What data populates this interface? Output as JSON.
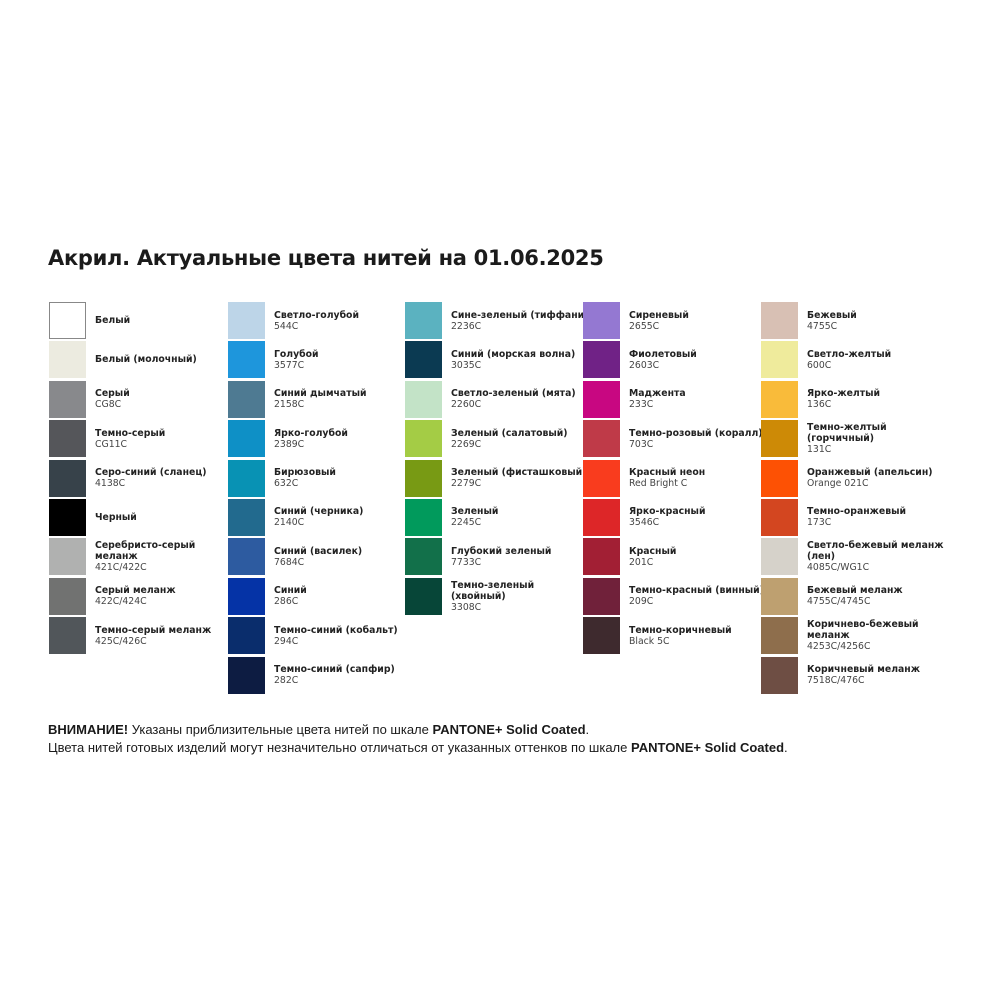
{
  "title": "Акрил. Актуальные цвета нитей на 01.06.2025",
  "columns": [
    [
      {
        "name": "Белый",
        "code": "",
        "color": "#ffffff"
      },
      {
        "name": "Белый (молочный)",
        "code": "",
        "color": "#ecebe0"
      },
      {
        "name": "Серый",
        "code": "CG8C",
        "color": "#88898c"
      },
      {
        "name": "Темно-серый",
        "code": "CG11C",
        "color": "#55565a"
      },
      {
        "name": "Серо-синий (сланец)",
        "code": "4138C",
        "color": "#37424a"
      },
      {
        "name": "Черный",
        "code": "",
        "color": "#000000"
      },
      {
        "name": "Серебристо-серый меланж",
        "code": "421C/422C",
        "color": "#b0b1b0"
      },
      {
        "name": "Серый меланж",
        "code": "422C/424C",
        "color": "#717271"
      },
      {
        "name": "Темно-серый меланж",
        "code": "425C/426C",
        "color": "#51565a"
      }
    ],
    [
      {
        "name": "Светло-голубой",
        "code": "544C",
        "color": "#bdd5e8"
      },
      {
        "name": "Голубой",
        "code": "3577C",
        "color": "#1e96dc"
      },
      {
        "name": "Синий дымчатый",
        "code": "2158C",
        "color": "#4e7a92"
      },
      {
        "name": "Ярко-голубой",
        "code": "2389C",
        "color": "#0e90c6"
      },
      {
        "name": "Бирюзовый",
        "code": "632C",
        "color": "#0892b4"
      },
      {
        "name": "Синий (черника)",
        "code": "2140C",
        "color": "#226a8e"
      },
      {
        "name": "Синий (василек)",
        "code": "7684C",
        "color": "#2d5ba0"
      },
      {
        "name": "Синий",
        "code": "286C",
        "color": "#0533a6"
      },
      {
        "name": "Темно-синий (кобальт)",
        "code": "294C",
        "color": "#0a2d6c"
      },
      {
        "name": "Темно-синий (сапфир)",
        "code": "282C",
        "color": "#0d1c42"
      }
    ],
    [
      {
        "name": "Сине-зеленый (тиффани)",
        "code": "2236C",
        "color": "#5bb2c0"
      },
      {
        "name": "Синий (морская волна)",
        "code": "3035C",
        "color": "#0b3a52"
      },
      {
        "name": "Светло-зеленый (мята)",
        "code": "2260C",
        "color": "#c3e3c7"
      },
      {
        "name": "Зеленый (салатовый)",
        "code": "2269C",
        "color": "#a4cc45"
      },
      {
        "name": "Зеленый (фисташковый)",
        "code": "2279C",
        "color": "#789a14"
      },
      {
        "name": "Зеленый",
        "code": "2245C",
        "color": "#019a5c"
      },
      {
        "name": "Глубокий зеленый",
        "code": "7733C",
        "color": "#12704a"
      },
      {
        "name": "Темно-зеленый (хвойный)",
        "code": "3308C",
        "color": "#074638"
      }
    ],
    [
      {
        "name": "Сиреневый",
        "code": "2655C",
        "color": "#9478d2"
      },
      {
        "name": "Фиолетовый",
        "code": "2603C",
        "color": "#702286"
      },
      {
        "name": "Маджента",
        "code": "233C",
        "color": "#c80781"
      },
      {
        "name": "Темно-розовый (коралл)",
        "code": "703C",
        "color": "#bf3a48"
      },
      {
        "name": "Красный неон",
        "code": "Red Bright C",
        "color": "#f93c1e"
      },
      {
        "name": "Ярко-красный",
        "code": "3546C",
        "color": "#dd2628"
      },
      {
        "name": "Красный",
        "code": "201C",
        "color": "#a21f34"
      },
      {
        "name": "Темно-красный (винный)",
        "code": "209C",
        "color": "#70213a"
      },
      {
        "name": "Темно-коричневый",
        "code": "Black 5C",
        "color": "#3e2a2e"
      }
    ],
    [
      {
        "name": "Бежевый",
        "code": "4755C",
        "color": "#d8c0b4"
      },
      {
        "name": "Светло-желтый",
        "code": "600C",
        "color": "#efeb9c"
      },
      {
        "name": "Ярко-желтый",
        "code": "136C",
        "color": "#f9bb3a"
      },
      {
        "name": "Темно-желтый (горчичный)",
        "code": "131C",
        "color": "#cd8a06"
      },
      {
        "name": "Оранжевый (апельсин)",
        "code": "Orange 021C",
        "color": "#fd5104"
      },
      {
        "name": "Темно-оранжевый",
        "code": "173C",
        "color": "#d34620"
      },
      {
        "name": "Светло-бежевый меланж (лен)",
        "code": "4085C/WG1C",
        "color": "#d6d2ca"
      },
      {
        "name": "Бежевый меланж",
        "code": "4755C/4745C",
        "color": "#bea070"
      },
      {
        "name": "Коричнево-бежевый меланж",
        "code": "4253C/4256C",
        "color": "#8e6e4c"
      },
      {
        "name": "Коричневый меланж",
        "code": "7518C/476C",
        "color": "#6e4e44"
      }
    ]
  ],
  "note": {
    "line1_bold": "ВНИМАНИЕ!",
    "line1_text": " Указаны приблизительные цвета нитей по шкале ",
    "line1_brand": "PANTONE+ Solid Coated",
    "line1_end": ".",
    "line2_text": "Цвета нитей готовых изделий могут незначительно отличаться от указанных оттенков по шкале ",
    "line2_brand": "PANTONE+ Solid Coated",
    "line2_end": "."
  }
}
